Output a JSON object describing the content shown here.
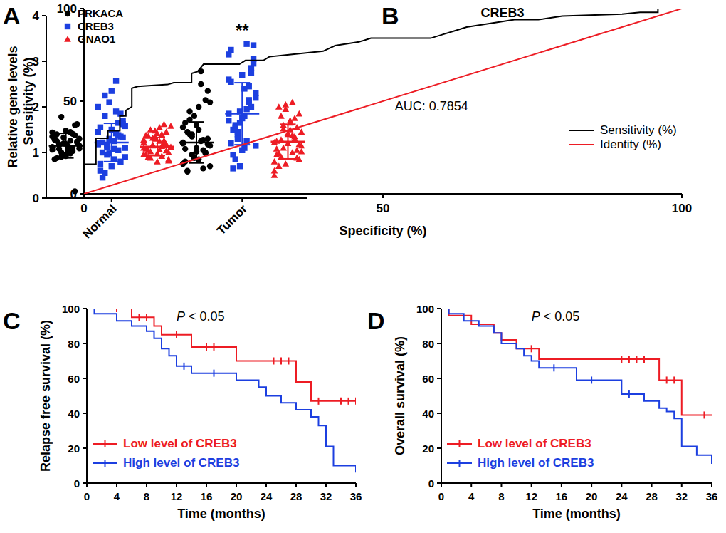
{
  "chart_data": [
    {
      "type": "strip",
      "label": "A",
      "y_label": "Relative gene levels",
      "categories": [
        "Normal",
        "Tumor"
      ],
      "ylim": [
        0,
        4
      ],
      "yticks": [
        0,
        1,
        2,
        3,
        4
      ],
      "grid": false,
      "legend": "top-left",
      "series": [
        {
          "name": "PRKACA",
          "color": "#000000",
          "marker": "circle",
          "values": [
            [
              1.12,
              1.05,
              1.32,
              0.98,
              1.25,
              1.41,
              1.08,
              0.15,
              1.78,
              1.62,
              1.2,
              1.15,
              0.92,
              1.35,
              1.02,
              1.28,
              1.45,
              0.88,
              1.1,
              1.18,
              1.38,
              1.0,
              1.22,
              0.95,
              1.3,
              1.48,
              1.06,
              1.14,
              0.85,
              1.26,
              1.4,
              1.03,
              1.16,
              1.6,
              0.9,
              1.24,
              1.33,
              1.09,
              1.19,
              1.44
            ],
            [
              1.2,
              0.85,
              1.65,
              2.78,
              0.6,
              1.05,
              1.4,
              2.15,
              0.95,
              1.3,
              1.8,
              0.7,
              1.1,
              1.55,
              2.0,
              0.8,
              1.25,
              1.45,
              0.65,
              1.9,
              1.0,
              1.35,
              2.35,
              0.9,
              1.15,
              1.6,
              0.75,
              1.5,
              1.08,
              2.5,
              0.58,
              1.28,
              1.72,
              0.98,
              1.4,
              1.18,
              0.88,
              2.1,
              1.02,
              1.22
            ]
          ],
          "mean": [
            1.15,
            1.22
          ],
          "sd": [
            0.27,
            0.45
          ]
        },
        {
          "name": "CREB3",
          "color": "#1c3fe0",
          "marker": "square",
          "values": [
            [
              1.2,
              0.85,
              1.55,
              2.57,
              0.45,
              1.05,
              1.8,
              1.35,
              0.95,
              1.62,
              2.1,
              1.1,
              0.7,
              1.45,
              1.25,
              0.6,
              1.9,
              1.0,
              1.38,
              2.25,
              0.8,
              1.15,
              1.7,
              1.3,
              0.9,
              1.5,
              2.0,
              1.08,
              0.75,
              1.42,
              1.22,
              1.65,
              0.55,
              1.85,
              1.12,
              1.33,
              0.98,
              1.58,
              2.35,
              1.18
            ],
            [
              1.85,
              2.4,
              1.2,
              3.38,
              0.95,
              2.1,
              1.6,
              2.85,
              1.4,
              3.05,
              0.7,
              2.2,
              1.75,
              2.6,
              1.1,
              3.25,
              1.95,
              1.5,
              2.45,
              0.85,
              2.0,
              1.3,
              2.95,
              1.65,
              2.3,
              1.05,
              3.15,
              1.8,
              2.55,
              1.25,
              0.65,
              2.15,
              1.55,
              2.75,
              1.45,
              3.35,
              1.9,
              1.15,
              2.7,
              1.7
            ]
          ],
          "mean": [
            1.22,
            1.85
          ],
          "sd": [
            0.42,
            0.68
          ]
        },
        {
          "name": "GNAO1",
          "color": "#ed1c24",
          "marker": "triangle",
          "values": [
            [
              1.1,
              1.25,
              0.95,
              1.4,
              1.05,
              1.62,
              0.88,
              1.18,
              1.32,
              1.0,
              1.48,
              1.12,
              0.8,
              1.28,
              1.55,
              1.08,
              0.92,
              1.36,
              1.2,
              1.02,
              1.45,
              1.15,
              0.85,
              1.3,
              1.58,
              0.98,
              1.22,
              1.06,
              1.38,
              1.14,
              0.9,
              1.26,
              1.5,
              1.04,
              1.17,
              0.82,
              1.34,
              1.11,
              1.42,
              0.96
            ],
            [
              1.22,
              1.5,
              0.95,
              2.1,
              0.7,
              1.35,
              1.8,
              1.05,
              1.6,
              0.85,
              1.95,
              1.15,
              1.4,
              0.6,
              1.7,
              1.25,
              1.0,
              2.0,
              1.3,
              0.9,
              1.55,
              1.1,
              1.85,
              0.75,
              1.45,
              1.2,
              0.5,
              1.65,
              1.08,
              1.38,
              0.98,
              1.75,
              1.28,
              0.88,
              1.52,
              1.18,
              2.05,
              1.02,
              1.42,
              0.8
            ]
          ],
          "mean": [
            1.13,
            1.24
          ],
          "sd": [
            0.2,
            0.38
          ]
        }
      ],
      "annotations": [
        {
          "text": "**",
          "category": 1,
          "series": 1,
          "y": 3.55
        }
      ]
    },
    {
      "type": "line",
      "label": "B",
      "title": "CREB3",
      "x_label": "Specificity (%)",
      "y_label": "Sensitivity (%)",
      "xlim": [
        0,
        100
      ],
      "ylim": [
        0,
        100
      ],
      "xticks": [
        0,
        50,
        100
      ],
      "yticks": [
        0,
        50,
        100
      ],
      "grid": false,
      "legend": "bottom-right",
      "series": [
        {
          "name": "Sensitivity (%)",
          "color": "#000000",
          "line_style": "solid",
          "x": [
            0,
            0,
            2,
            2,
            4,
            4,
            6,
            6,
            7,
            7,
            8,
            8,
            9,
            14,
            15,
            18,
            18,
            19,
            20,
            26,
            27,
            30,
            31,
            34,
            40,
            42,
            46,
            48,
            58,
            60,
            62,
            64,
            68,
            72,
            76,
            80,
            90,
            93,
            96,
            96,
            100
          ],
          "values": [
            0,
            16,
            16,
            30,
            30,
            34,
            34,
            42,
            42,
            45,
            47,
            57,
            58,
            59,
            60,
            60,
            65,
            66,
            70,
            70,
            72,
            72,
            74,
            75,
            77,
            80,
            82,
            84,
            84,
            86,
            88,
            90,
            92,
            94,
            94,
            96,
            97,
            98,
            98,
            100,
            100
          ]
        },
        {
          "name": "Identity (%)",
          "color": "#ed1c24",
          "line_style": "solid",
          "x": [
            0,
            100
          ],
          "values": [
            0,
            100
          ]
        }
      ],
      "annotations": [
        {
          "text": "AUC: 0.7854",
          "x": 52,
          "y": 45
        }
      ]
    },
    {
      "type": "line",
      "label": "C",
      "x_label": "Time (months)",
      "y_label": "Relapse free survival (%)",
      "xlim": [
        0,
        36
      ],
      "ylim": [
        0,
        100
      ],
      "xticks": [
        0,
        4,
        8,
        12,
        16,
        20,
        24,
        28,
        32,
        36
      ],
      "yticks": [
        0,
        20,
        40,
        60,
        80,
        100
      ],
      "grid": false,
      "legend": "bottom-left",
      "series": [
        {
          "name": "Low level of CREB3",
          "color": "#ed1c24",
          "line_style": "step",
          "x": [
            0,
            6,
            9,
            10,
            14,
            20,
            28,
            30,
            36
          ],
          "values": [
            100,
            95,
            90,
            85,
            78,
            70,
            58,
            47,
            47
          ],
          "censor_x": [
            4,
            7,
            8,
            12,
            16,
            17,
            25,
            26,
            27,
            31,
            34,
            35,
            36
          ]
        },
        {
          "name": "High level of CREB3",
          "color": "#1c3fe0",
          "line_style": "step",
          "x": [
            0,
            1,
            4,
            6,
            8,
            9,
            10,
            11,
            12,
            14,
            20,
            23,
            24,
            26,
            28,
            30,
            31,
            32,
            33,
            36
          ],
          "values": [
            100,
            97,
            93,
            90,
            87,
            83,
            77,
            73,
            67,
            63,
            59,
            55,
            50,
            46,
            42,
            38,
            33,
            21,
            10,
            6
          ],
          "censor_x": [
            13,
            17
          ]
        }
      ],
      "annotations": [
        {
          "text": "P < 0.05",
          "x": 12,
          "y": 93
        }
      ]
    },
    {
      "type": "line",
      "label": "D",
      "x_label": "Time (months)",
      "y_label": "Overall survival (%)",
      "xlim": [
        0,
        36
      ],
      "ylim": [
        0,
        100
      ],
      "xticks": [
        0,
        4,
        8,
        12,
        16,
        20,
        24,
        28,
        32,
        36
      ],
      "yticks": [
        0,
        20,
        40,
        60,
        80,
        100
      ],
      "grid": false,
      "legend": "bottom-left",
      "series": [
        {
          "name": "Low level of CREB3",
          "color": "#ed1c24",
          "line_style": "step",
          "x": [
            0,
            1,
            4,
            7,
            8,
            10,
            13,
            29,
            32,
            36
          ],
          "values": [
            100,
            96,
            91,
            86,
            82,
            77,
            71,
            59,
            39,
            39
          ],
          "censor_x": [
            12,
            24,
            25,
            26,
            27,
            30,
            31,
            35
          ]
        },
        {
          "name": "High level of CREB3",
          "color": "#1c3fe0",
          "line_style": "step",
          "x": [
            0,
            1,
            3,
            5,
            7,
            8,
            10,
            11,
            12,
            13,
            18,
            24,
            27,
            29,
            30,
            31,
            32,
            34,
            36
          ],
          "values": [
            100,
            97,
            93,
            90,
            86,
            80,
            77,
            73,
            70,
            66,
            59,
            51,
            47,
            43,
            41,
            37,
            21,
            16,
            11
          ],
          "censor_x": [
            15,
            20,
            25
          ]
        }
      ],
      "annotations": [
        {
          "text": "P < 0.05",
          "x": 12,
          "y": 93
        }
      ]
    }
  ]
}
